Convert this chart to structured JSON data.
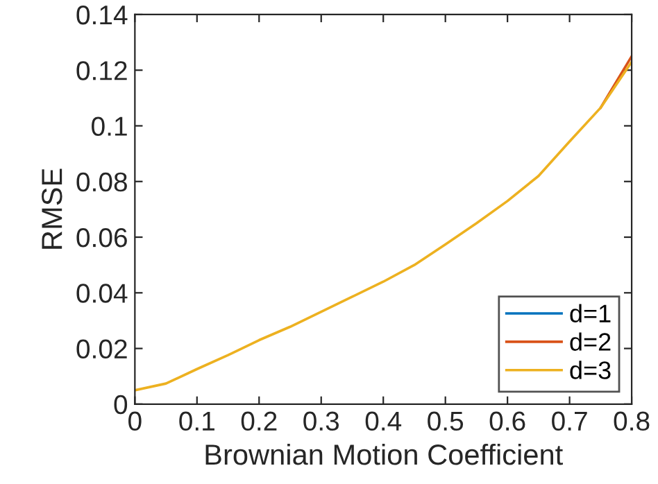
{
  "chart_data": {
    "type": "line",
    "xlabel": "Brownian Motion Coefficient",
    "ylabel": "RMSE",
    "x": [
      0,
      0.05,
      0.1,
      0.15,
      0.2,
      0.25,
      0.3,
      0.35,
      0.4,
      0.45,
      0.5,
      0.55,
      0.6,
      0.65,
      0.7,
      0.75,
      0.8
    ],
    "series": [
      {
        "name": "d=1",
        "color": "#0072bd",
        "values": [
          null,
          null,
          null,
          null,
          null,
          null,
          null,
          null,
          null,
          null,
          null,
          null,
          null,
          null,
          null,
          null,
          null
        ]
      },
      {
        "name": "d=2",
        "color": "#d95319",
        "values": [
          null,
          null,
          null,
          null,
          null,
          null,
          null,
          null,
          null,
          null,
          null,
          null,
          null,
          null,
          null,
          0.1065,
          0.125
        ]
      },
      {
        "name": "d=3",
        "color": "#edb120",
        "values": [
          0.005,
          0.0074,
          0.0126,
          0.0176,
          0.023,
          0.0278,
          0.0332,
          0.0386,
          0.044,
          0.05,
          0.0574,
          0.065,
          0.073,
          0.082,
          0.0944,
          0.1065,
          0.123
        ]
      }
    ],
    "xlim": [
      0,
      0.8
    ],
    "ylim": [
      0,
      0.14
    ],
    "xticks": [
      0,
      0.1,
      0.2,
      0.3,
      0.4,
      0.5,
      0.6,
      0.7,
      0.8
    ],
    "yticks": [
      0,
      0.02,
      0.04,
      0.06,
      0.08,
      0.1,
      0.12,
      0.14
    ],
    "legend": "bottom right",
    "grid": false,
    "marker": "none",
    "line_style": "solid"
  }
}
